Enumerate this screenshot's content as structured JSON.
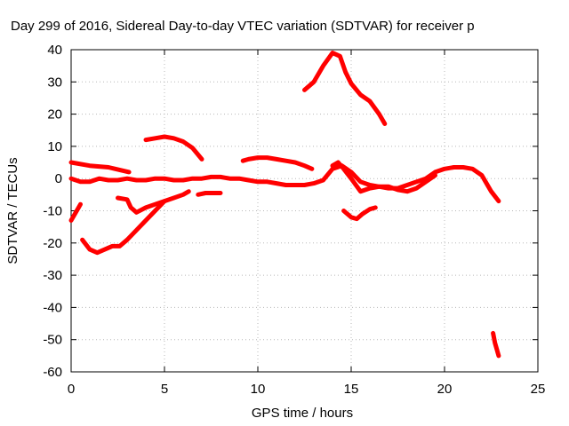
{
  "chart_data": {
    "type": "scatter",
    "title": "Day 299 of 2016, Sidereal Day-to-day VTEC variation (SDTVAR) for receiver p",
    "xlabel": "GPS time / hours",
    "ylabel": "SDTVAR / TECUs",
    "xlim": [
      0,
      25
    ],
    "ylim": [
      -60,
      40
    ],
    "grid": true,
    "marker": "plus",
    "color": "#ff0000",
    "x_ticks": [
      "0",
      "5",
      "10",
      "15",
      "20",
      "25"
    ],
    "y_ticks": [
      "40",
      "30",
      "20",
      "10",
      "0",
      "-10",
      "-20",
      "-30",
      "-40",
      "-50",
      "-60"
    ],
    "series": [
      {
        "name": "s1",
        "x": [
          0.0,
          1.0,
          2.0,
          3.1
        ],
        "y": [
          5,
          4,
          3.5,
          2
        ]
      },
      {
        "name": "s2",
        "x": [
          0.0,
          0.5,
          1.0,
          1.5,
          2.0,
          2.5,
          3.0,
          3.5,
          4.0,
          4.5,
          5.0,
          5.5,
          6.0,
          6.5,
          7.0,
          7.5,
          8.0,
          8.5,
          9.0,
          9.5,
          10.0,
          10.5,
          11.0,
          11.5,
          12.0,
          12.5,
          13.0,
          13.5,
          14.0,
          14.5,
          15.0,
          15.5,
          16.0,
          16.5,
          17.0,
          17.5,
          18.0,
          18.5,
          19.0,
          19.5,
          20.0,
          20.5,
          21.0,
          21.5,
          22.0,
          22.5,
          22.9
        ],
        "y": [
          0,
          -1,
          -1,
          0,
          -0.5,
          -0.5,
          0,
          -0.5,
          -0.5,
          0,
          0,
          -0.5,
          -0.5,
          0,
          0,
          0.5,
          0.5,
          0,
          0,
          -0.5,
          -1,
          -1,
          -1.5,
          -2,
          -2,
          -2,
          -1.5,
          -0.5,
          3,
          4,
          2,
          -1,
          -2,
          -2.5,
          -3,
          -3,
          -2,
          -1,
          0,
          2,
          3,
          3.5,
          3.5,
          3,
          1,
          -4,
          -7
        ]
      },
      {
        "name": "s3",
        "x": [
          0.0,
          0.2,
          0.4,
          0.5
        ],
        "y": [
          -13,
          -11,
          -9,
          -8
        ]
      },
      {
        "name": "s4",
        "x": [
          0.6,
          1.0,
          1.4,
          1.8,
          2.2,
          2.6,
          3.0,
          3.5,
          4.0,
          4.5,
          5.0
        ],
        "y": [
          -19,
          -22,
          -23,
          -22,
          -21,
          -21,
          -19,
          -16,
          -13,
          -10,
          -7
        ]
      },
      {
        "name": "s5",
        "x": [
          2.5,
          3.0,
          3.2,
          3.5,
          4.0,
          4.5,
          5.0,
          5.5,
          6.0,
          6.3
        ],
        "y": [
          -6,
          -6.5,
          -9,
          -10.5,
          -9,
          -8,
          -7,
          -6,
          -5,
          -4
        ]
      },
      {
        "name": "s6",
        "x": [
          6.8,
          7.2,
          7.6,
          8.0
        ],
        "y": [
          -5,
          -4.5,
          -4.5,
          -4.5
        ]
      },
      {
        "name": "s7",
        "x": [
          4.0,
          4.5,
          5.0,
          5.5,
          6.0,
          6.5,
          7.0
        ],
        "y": [
          12,
          12.5,
          13,
          12.5,
          11.5,
          9.5,
          6
        ]
      },
      {
        "name": "s8",
        "x": [
          9.2,
          9.5,
          10.0,
          10.5,
          11.0,
          11.5,
          12.0,
          12.5,
          12.9
        ],
        "y": [
          5.5,
          6,
          6.5,
          6.5,
          6,
          5.5,
          5,
          4,
          3
        ]
      },
      {
        "name": "s9",
        "x": [
          12.5,
          13.0,
          13.5,
          14.0,
          14.4,
          14.7,
          15.0,
          15.5,
          16.0,
          16.5,
          16.8
        ],
        "y": [
          27.5,
          30,
          35,
          39,
          38,
          33,
          29.5,
          26,
          24,
          20,
          17
        ]
      },
      {
        "name": "s10",
        "x": [
          14.0,
          14.3,
          14.6,
          15.0,
          15.5,
          16.0,
          16.5,
          17.0,
          17.5,
          18.0,
          18.5,
          19.0,
          19.5
        ],
        "y": [
          4,
          5,
          3,
          0,
          -4,
          -3,
          -2.5,
          -2.5,
          -3.5,
          -4,
          -3,
          -1,
          1
        ]
      },
      {
        "name": "s11",
        "x": [
          14.6,
          15.0,
          15.3,
          15.6,
          16.0,
          16.3
        ],
        "y": [
          -10,
          -12,
          -12.5,
          -11,
          -9.5,
          -9
        ]
      },
      {
        "name": "s12",
        "x": [
          22.6,
          22.7,
          22.8,
          22.9
        ],
        "y": [
          -48,
          -51,
          -53,
          -55
        ]
      }
    ]
  }
}
